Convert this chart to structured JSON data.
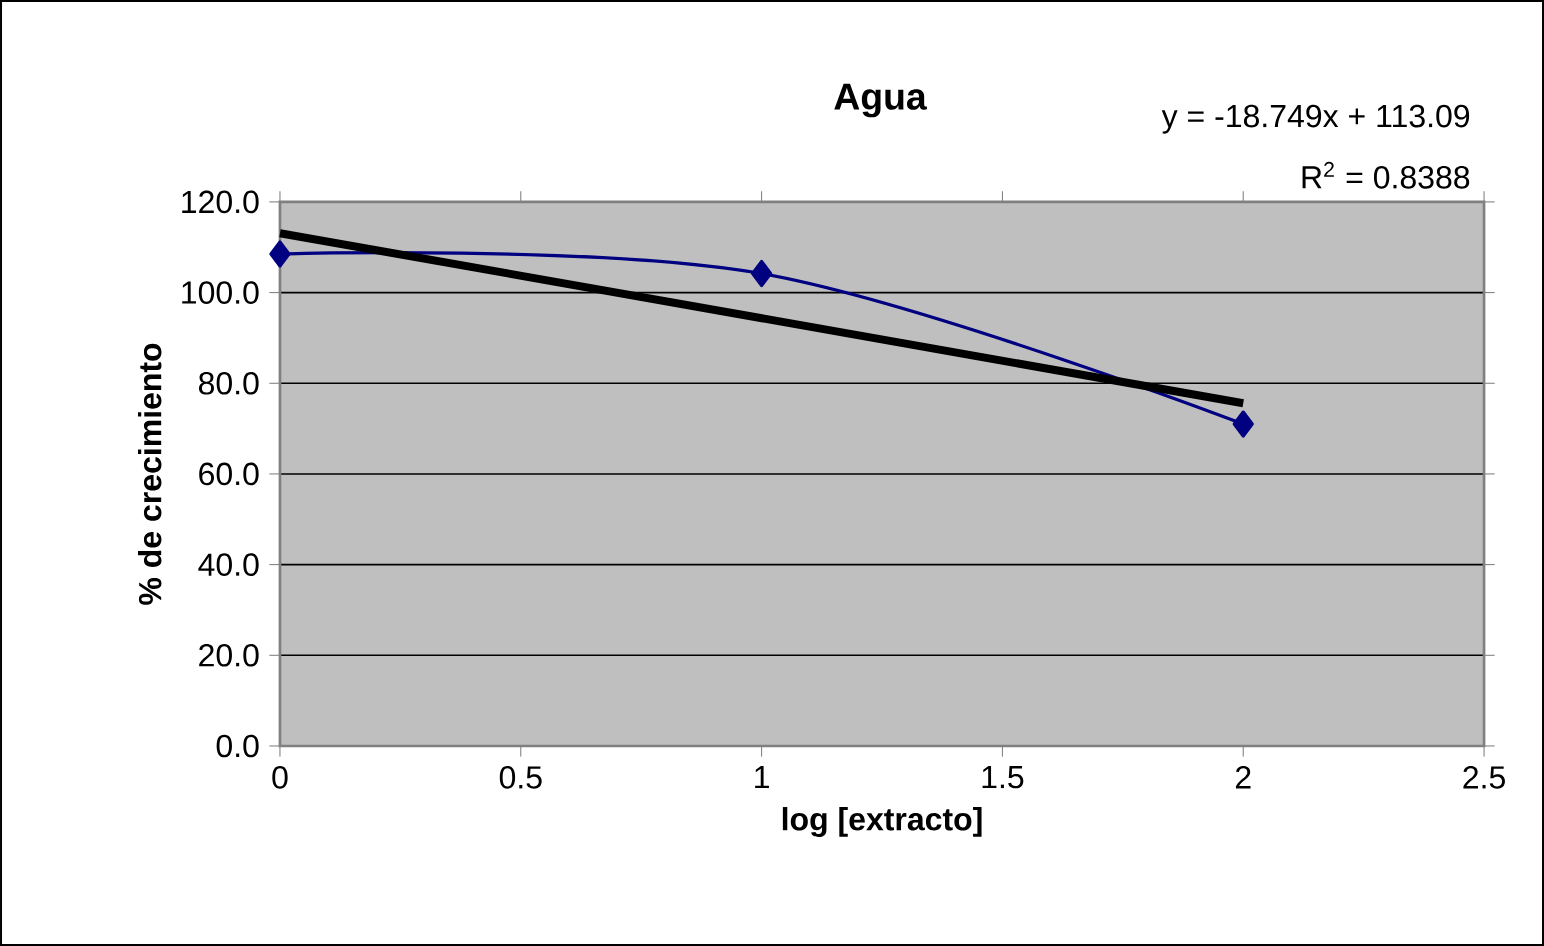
{
  "chart_data": {
    "type": "line",
    "title": "Agua",
    "xlabel": "log [extracto]",
    "ylabel": "% de crecimiento",
    "x": [
      0,
      1,
      2
    ],
    "series": [
      {
        "color": "#000080",
        "values": [
          108.5,
          104.2,
          71.0
        ],
        "marker": "diamond"
      },
      {
        "type": "line",
        "color": "#000000",
        "x": [
          0,
          2
        ],
        "values": [
          113.1,
          75.6
        ],
        "marker": "none"
      }
    ],
    "xlim": [
      0,
      2.5
    ],
    "xticks": [
      0,
      0.5,
      1,
      1.5,
      2,
      2.5
    ],
    "ylim": [
      0,
      120
    ],
    "yticks": [
      {
        "value": 0,
        "label": "0.0"
      },
      {
        "value": 20,
        "label": "20.0"
      },
      {
        "value": 40,
        "label": "40.0"
      },
      {
        "value": 60,
        "label": "60.0"
      },
      {
        "value": 80,
        "label": "80.0"
      },
      {
        "value": 100,
        "label": "100.0"
      },
      {
        "value": 120,
        "label": "120.0"
      }
    ],
    "grid": "y",
    "annotations": [
      "y = -18.749x + 113.09",
      "R$^{2}$ = 0.8388"
    ]
  }
}
